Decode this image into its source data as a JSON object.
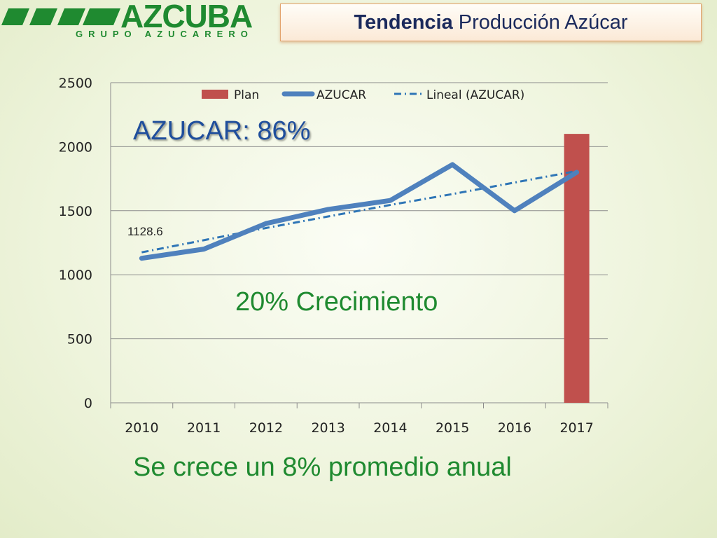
{
  "logo": {
    "brand": "AZCUBA",
    "subtitle": "GRUPO AZUCARERO"
  },
  "header": {
    "title_bold": "Tendencia",
    "title_rest": "Producción Azúcar"
  },
  "annotations": {
    "azucar_pct": "AZUCAR: 86%",
    "growth": "20% Crecimiento",
    "avg": "Se crece un 8% promedio anual",
    "first_value": "1128.6"
  },
  "colors": {
    "plan": "#c0504d",
    "azucar": "#4f81bd",
    "trend": "#2e75b6",
    "note_blue": "#1f4e9c",
    "note_green": "#1f8a30"
  },
  "chart_data": {
    "type": "bar",
    "categories": [
      "2010",
      "2011",
      "2012",
      "2013",
      "2014",
      "2015",
      "2016",
      "2017"
    ],
    "ylim": [
      0,
      2500
    ],
    "yticks": [
      0,
      500,
      1000,
      1500,
      2000,
      2500
    ],
    "legend_position": "top",
    "series": [
      {
        "name": "Plan",
        "kind": "bar",
        "values": [
          null,
          null,
          null,
          null,
          null,
          null,
          null,
          2100
        ]
      },
      {
        "name": "AZUCAR",
        "kind": "line",
        "values": [
          1128.6,
          1200,
          1400,
          1510,
          1580,
          1860,
          1500,
          1800
        ]
      },
      {
        "name": "Lineal (AZUCAR)",
        "kind": "trendline",
        "values": [
          1175,
          1270,
          1365,
          1455,
          1545,
          1630,
          1720,
          1810
        ]
      }
    ]
  }
}
